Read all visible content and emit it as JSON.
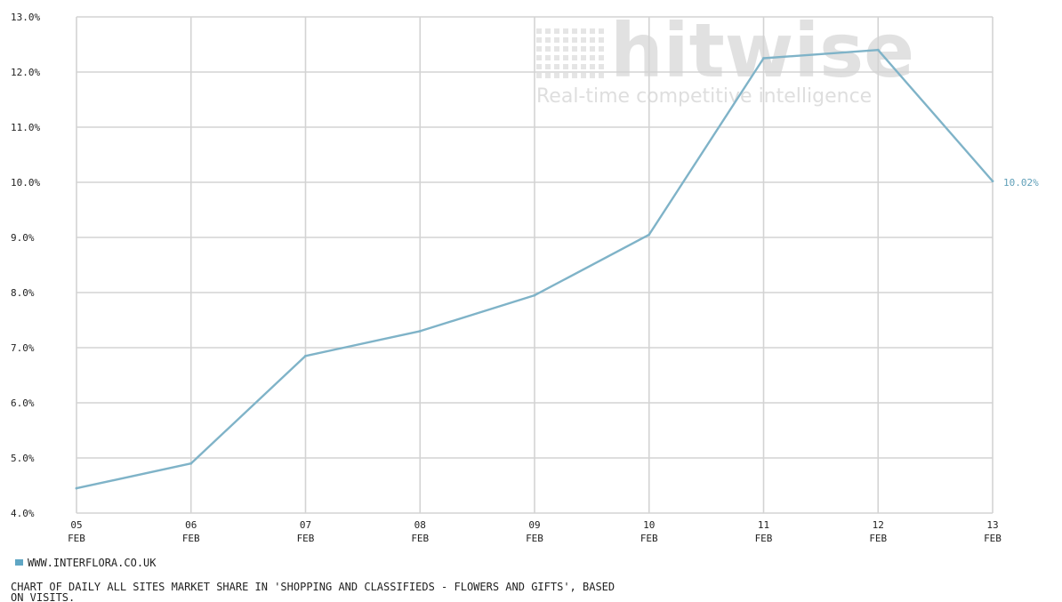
{
  "chart_data": {
    "type": "line",
    "title": "",
    "xlabel": "",
    "ylabel": "",
    "y_tick_labels": [
      "4.0%",
      "5.0%",
      "6.0%",
      "7.0%",
      "8.0%",
      "9.0%",
      "10.0%",
      "11.0%",
      "12.0%",
      "13.0%"
    ],
    "ylim": [
      4.0,
      13.0
    ],
    "x_tick_labels": [
      {
        "day": "05",
        "month": "FEB"
      },
      {
        "day": "06",
        "month": "FEB"
      },
      {
        "day": "07",
        "month": "FEB"
      },
      {
        "day": "08",
        "month": "FEB"
      },
      {
        "day": "09",
        "month": "FEB"
      },
      {
        "day": "10",
        "month": "FEB"
      },
      {
        "day": "11",
        "month": "FEB"
      },
      {
        "day": "12",
        "month": "FEB"
      },
      {
        "day": "13",
        "month": "FEB"
      }
    ],
    "series": [
      {
        "name": "WWW.INTERFLORA.CO.UK",
        "color": "#7fb3c8",
        "values": [
          4.45,
          4.9,
          6.85,
          7.3,
          7.95,
          9.05,
          12.25,
          12.4,
          10.02
        ]
      }
    ],
    "end_label": "10.02%",
    "grid": true,
    "legend_position": "bottom-left"
  },
  "watermark": {
    "brand": "hitwise",
    "tagline": "Real-time competitive intelligence"
  },
  "caption": {
    "line1": "CHART OF DAILY ALL SITES MARKET SHARE IN 'SHOPPING AND CLASSIFIEDS - FLOWERS AND GIFTS', BASED",
    "line2": "ON VISITS."
  },
  "colors": {
    "grid": "#d3d3d3",
    "axis": "#b0b0b0",
    "line": "#7fb3c8",
    "legend_swatch": "#5fa6c4",
    "end_label": "#5f9fb8"
  }
}
